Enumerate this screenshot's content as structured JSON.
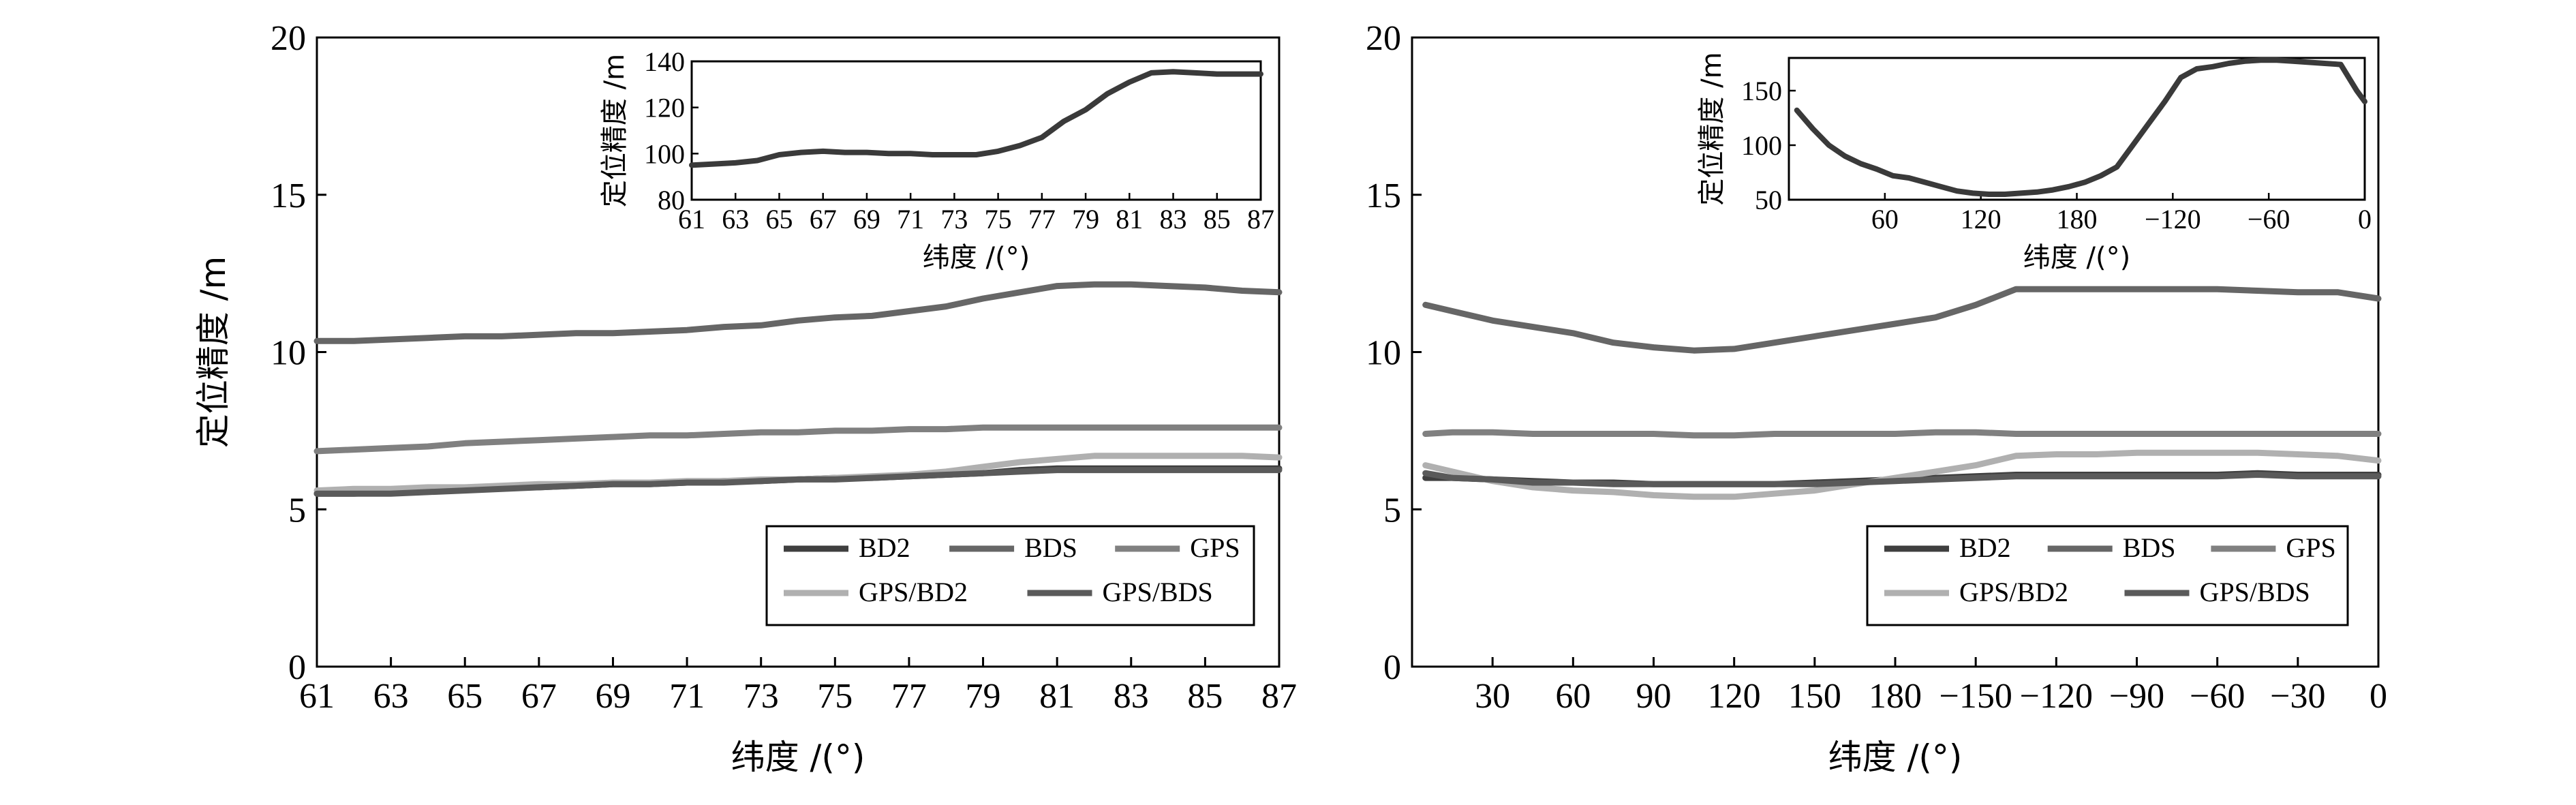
{
  "series_names": [
    "BD2",
    "BDS",
    "GPS",
    "GPS/BD2",
    "GPS/BDS"
  ],
  "colors": {
    "BD2": "#3f3f3f",
    "BDS": "#666666",
    "GPS": "#808080",
    "GPS/BD2": "#b0b0b0",
    "GPS/BDS": "#5a5a5a"
  },
  "chart_data": [
    {
      "type": "line",
      "panel": "left",
      "xlabel": "纬度 /(°)",
      "ylabel": "定位精度 /m",
      "xlim": [
        61,
        87
      ],
      "ylim": [
        0,
        20
      ],
      "xticks": [
        "61",
        "63",
        "65",
        "67",
        "69",
        "71",
        "73",
        "75",
        "77",
        "79",
        "81",
        "83",
        "85",
        "87"
      ],
      "yticks": [
        "0",
        "5",
        "10",
        "15",
        "20"
      ],
      "legend": "bottom-right",
      "x": [
        61,
        62,
        63,
        64,
        65,
        66,
        67,
        68,
        69,
        70,
        71,
        72,
        73,
        74,
        75,
        76,
        77,
        78,
        79,
        80,
        81,
        82,
        83,
        84,
        85,
        86,
        87
      ],
      "series": [
        {
          "name": "BD2",
          "values": [
            5.5,
            5.5,
            5.55,
            5.6,
            5.65,
            5.7,
            5.7,
            5.75,
            5.8,
            5.8,
            5.85,
            5.9,
            5.9,
            5.95,
            6.0,
            6.0,
            6.05,
            6.1,
            6.15,
            6.25,
            6.3,
            6.3,
            6.3,
            6.3,
            6.3,
            6.3,
            6.3
          ]
        },
        {
          "name": "BDS",
          "values": [
            10.35,
            10.35,
            10.4,
            10.45,
            10.5,
            10.5,
            10.55,
            10.6,
            10.6,
            10.65,
            10.7,
            10.8,
            10.85,
            11.0,
            11.1,
            11.15,
            11.3,
            11.45,
            11.7,
            11.9,
            12.1,
            12.15,
            12.15,
            12.1,
            12.05,
            11.95,
            11.9
          ]
        },
        {
          "name": "GPS",
          "values": [
            6.85,
            6.9,
            6.95,
            7.0,
            7.1,
            7.15,
            7.2,
            7.25,
            7.3,
            7.35,
            7.35,
            7.4,
            7.45,
            7.45,
            7.5,
            7.5,
            7.55,
            7.55,
            7.6,
            7.6,
            7.6,
            7.6,
            7.6,
            7.6,
            7.6,
            7.6,
            7.6
          ]
        },
        {
          "name": "GPS/BD2",
          "values": [
            5.6,
            5.65,
            5.65,
            5.7,
            5.7,
            5.75,
            5.8,
            5.8,
            5.85,
            5.85,
            5.9,
            5.9,
            5.95,
            5.95,
            6.0,
            6.05,
            6.1,
            6.2,
            6.35,
            6.5,
            6.6,
            6.7,
            6.7,
            6.7,
            6.7,
            6.7,
            6.65
          ]
        },
        {
          "name": "GPS/BDS",
          "values": [
            5.5,
            5.5,
            5.5,
            5.55,
            5.6,
            5.65,
            5.7,
            5.75,
            5.8,
            5.8,
            5.85,
            5.85,
            5.9,
            5.95,
            5.95,
            6.0,
            6.05,
            6.1,
            6.15,
            6.2,
            6.25,
            6.25,
            6.25,
            6.25,
            6.25,
            6.25,
            6.25
          ]
        }
      ],
      "inset": {
        "type": "line",
        "xlabel": "纬度 /(°)",
        "ylabel": "定位精度 /m",
        "xlim": [
          61,
          87
        ],
        "ylim": [
          80,
          140
        ],
        "xticks": [
          "61",
          "63",
          "65",
          "67",
          "69",
          "71",
          "73",
          "75",
          "77",
          "79",
          "81",
          "83",
          "85",
          "87"
        ],
        "yticks": [
          "80",
          "100",
          "120",
          "140"
        ],
        "x": [
          61,
          62,
          63,
          64,
          65,
          66,
          67,
          68,
          69,
          70,
          71,
          72,
          73,
          74,
          75,
          76,
          77,
          78,
          79,
          80,
          81,
          82,
          83,
          84,
          85,
          86,
          87
        ],
        "values": [
          95,
          95.5,
          96,
          97,
          99.5,
          100.5,
          101,
          100.5,
          100.5,
          100,
          100,
          99.5,
          99.5,
          99.5,
          101,
          103.5,
          107,
          114,
          119,
          126,
          131,
          135,
          135.5,
          135,
          134.5,
          134.5,
          134.5
        ]
      }
    },
    {
      "type": "line",
      "panel": "right",
      "xlabel": "纬度 /(°)",
      "ylabel": "",
      "xlim": [
        0,
        360
      ],
      "ylim": [
        0,
        20
      ],
      "xticks": [
        "30",
        "60",
        "90",
        "120",
        "150",
        "180",
        "−150",
        "−120",
        "−90",
        "−60",
        "−30",
        "0"
      ],
      "yticks": [
        "0",
        "5",
        "10",
        "15",
        "20"
      ],
      "legend": "bottom-right",
      "x": [
        5,
        15,
        30,
        45,
        60,
        75,
        90,
        105,
        120,
        135,
        150,
        165,
        180,
        195,
        210,
        225,
        240,
        255,
        270,
        285,
        300,
        315,
        330,
        345,
        360
      ],
      "series": [
        {
          "name": "BD2",
          "values": [
            6.0,
            6.0,
            5.95,
            5.9,
            5.85,
            5.85,
            5.8,
            5.8,
            5.8,
            5.8,
            5.85,
            5.9,
            5.95,
            6.0,
            6.05,
            6.1,
            6.1,
            6.1,
            6.1,
            6.1,
            6.1,
            6.15,
            6.1,
            6.1,
            6.1
          ]
        },
        {
          "name": "BDS",
          "values": [
            11.5,
            11.3,
            11.0,
            10.8,
            10.6,
            10.3,
            10.15,
            10.05,
            10.1,
            10.3,
            10.5,
            10.7,
            10.9,
            11.1,
            11.5,
            12.0,
            12.0,
            12.0,
            12.0,
            12.0,
            12.0,
            11.95,
            11.9,
            11.9,
            11.7
          ]
        },
        {
          "name": "GPS",
          "values": [
            7.4,
            7.45,
            7.45,
            7.4,
            7.4,
            7.4,
            7.4,
            7.35,
            7.35,
            7.4,
            7.4,
            7.4,
            7.4,
            7.45,
            7.45,
            7.4,
            7.4,
            7.4,
            7.4,
            7.4,
            7.4,
            7.4,
            7.4,
            7.4,
            7.4
          ]
        },
        {
          "name": "GPS/BD2",
          "values": [
            6.4,
            6.2,
            5.9,
            5.7,
            5.6,
            5.55,
            5.45,
            5.4,
            5.4,
            5.5,
            5.6,
            5.8,
            6.0,
            6.2,
            6.4,
            6.7,
            6.75,
            6.75,
            6.8,
            6.8,
            6.8,
            6.8,
            6.75,
            6.7,
            6.55
          ]
        },
        {
          "name": "GPS/BDS",
          "values": [
            6.15,
            6.0,
            5.95,
            5.85,
            5.85,
            5.8,
            5.8,
            5.8,
            5.8,
            5.8,
            5.8,
            5.85,
            5.9,
            5.95,
            6.0,
            6.05,
            6.05,
            6.05,
            6.05,
            6.05,
            6.05,
            6.1,
            6.05,
            6.05,
            6.05
          ]
        }
      ],
      "inset": {
        "type": "line",
        "xlabel": "纬度 /(°)",
        "ylabel": "定位精度 /m",
        "xlim": [
          0,
          360
        ],
        "ylim": [
          50,
          180
        ],
        "xticks": [
          "60",
          "120",
          "180",
          "−120",
          "−60",
          "0"
        ],
        "yticks": [
          "50",
          "100",
          "150"
        ],
        "x": [
          5,
          15,
          25,
          35,
          45,
          55,
          65,
          75,
          85,
          95,
          105,
          115,
          125,
          135,
          145,
          155,
          165,
          175,
          185,
          195,
          205,
          215,
          225,
          235,
          245,
          255,
          265,
          275,
          285,
          295,
          305,
          315,
          325,
          335,
          345,
          355,
          360
        ],
        "values": [
          132,
          115,
          100,
          90,
          83,
          78,
          72,
          70,
          66,
          62,
          58,
          56,
          55,
          55,
          56,
          57,
          59,
          62,
          66,
          72,
          80,
          100,
          120,
          140,
          162,
          170,
          172,
          175,
          177,
          178,
          178,
          177,
          176,
          175,
          174,
          150,
          140
        ]
      }
    }
  ]
}
